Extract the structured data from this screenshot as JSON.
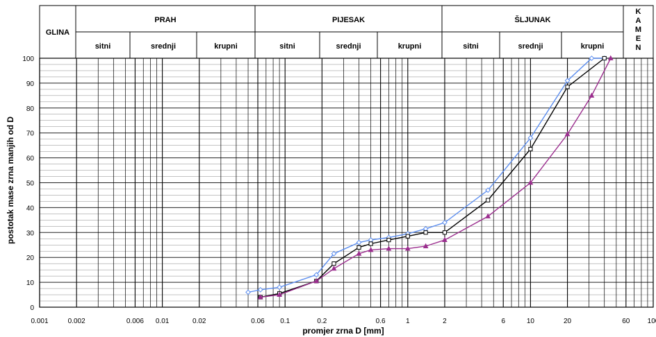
{
  "header": {
    "glina": "GLINA",
    "groups": [
      {
        "label": "PRAH",
        "subs": [
          "sitni",
          "srednji",
          "krupni"
        ]
      },
      {
        "label": "PIJESAK",
        "subs": [
          "sitni",
          "srednji",
          "krupni"
        ]
      },
      {
        "label": "ŠLJUNAK",
        "subs": [
          "sitni",
          "srednji",
          "krupni"
        ]
      }
    ],
    "kamen_letters": [
      "K",
      "A",
      "M",
      "E",
      "N"
    ]
  },
  "chart_data": {
    "type": "line",
    "xscale": "log",
    "xlim": [
      0.001,
      100
    ],
    "ylim": [
      0,
      100
    ],
    "xlabel": "promjer zrna D [mm]",
    "ylabel": "postotak mase zrna manjih od D",
    "xticks": [
      {
        "label": "0.001",
        "value": 0.001
      },
      {
        "label": "0.002",
        "value": 0.002
      },
      {
        "label": "0.006",
        "value": 0.006
      },
      {
        "label": "0.01",
        "value": 0.01
      },
      {
        "label": "0.02",
        "value": 0.02
      },
      {
        "label": "0.06",
        "value": 0.06
      },
      {
        "label": "0.1",
        "value": 0.1
      },
      {
        "label": "0.2",
        "value": 0.2
      },
      {
        "label": "0.6",
        "value": 0.6
      },
      {
        "label": "1",
        "value": 1
      },
      {
        "label": "2",
        "value": 2
      },
      {
        "label": "6",
        "value": 6
      },
      {
        "label": "10",
        "value": 10
      },
      {
        "label": "20",
        "value": 20
      },
      {
        "label": "60",
        "value": 60
      },
      {
        "label": "100",
        "value": 100
      }
    ],
    "yticks": [
      0,
      10,
      20,
      30,
      40,
      50,
      60,
      70,
      80,
      90,
      100
    ],
    "grid": true,
    "series": [
      {
        "color": "#5b8def",
        "marker": "diamond",
        "x": [
          0.05,
          0.063,
          0.09,
          0.18,
          0.25,
          0.4,
          0.5,
          0.7,
          1.0,
          1.4,
          2.0,
          4.5,
          10,
          20,
          31.5,
          40
        ],
        "y": [
          6,
          7,
          8,
          13,
          21.5,
          26,
          27,
          28,
          29.5,
          31.5,
          34,
          47,
          68,
          91,
          100,
          100
        ]
      },
      {
        "color": "#000000",
        "marker": "square",
        "x": [
          0.063,
          0.09,
          0.18,
          0.25,
          0.4,
          0.5,
          0.7,
          1.0,
          1.4,
          2.0,
          4.5,
          10,
          20,
          40
        ],
        "y": [
          4,
          5.5,
          10.5,
          17.5,
          24,
          25.5,
          27,
          28.5,
          30,
          30,
          43,
          63.5,
          88.5,
          100
        ]
      },
      {
        "color": "#9b2d8e",
        "marker": "triangle",
        "x": [
          0.063,
          0.09,
          0.18,
          0.25,
          0.4,
          0.5,
          0.7,
          1.0,
          1.4,
          2.0,
          4.5,
          10,
          20,
          31.5,
          45
        ],
        "y": [
          4,
          5,
          10.5,
          15.5,
          21.5,
          23,
          23.5,
          23.5,
          24.5,
          27,
          36.5,
          50,
          69.5,
          85,
          100
        ]
      }
    ]
  }
}
